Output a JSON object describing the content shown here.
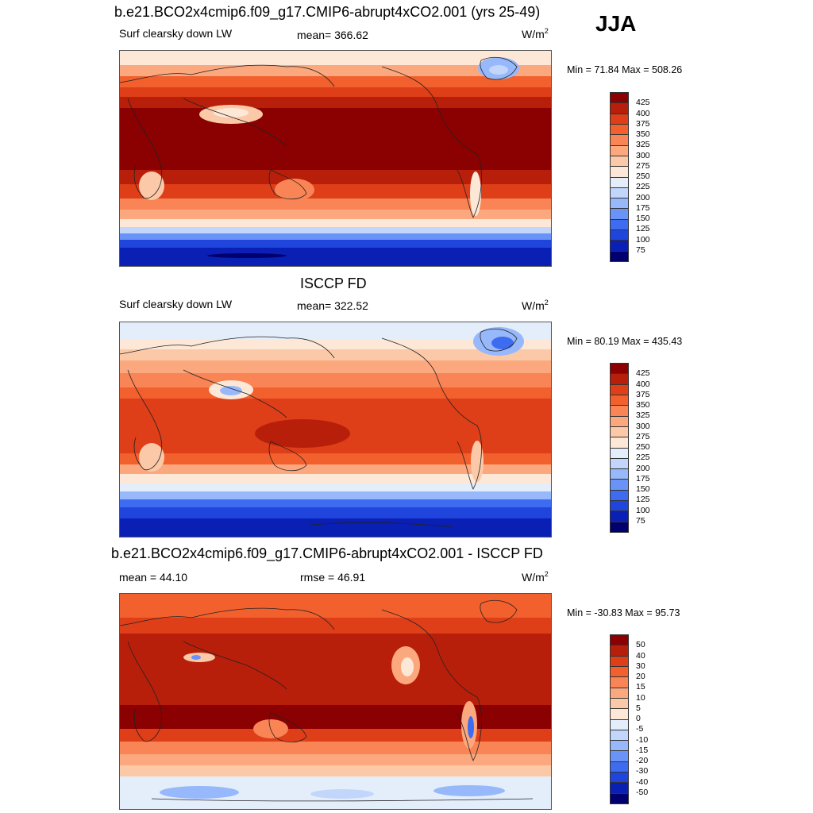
{
  "season": "JJA",
  "palettes": {
    "abs": [
      "#00006e",
      "#0a1fb4",
      "#1f45dc",
      "#3e6cf0",
      "#6a93f7",
      "#97b8fa",
      "#c2d6fb",
      "#e4eefb",
      "#fde8d7",
      "#fcc9a8",
      "#fca87e",
      "#f98455",
      "#f2602e",
      "#de3e18",
      "#b81f0a",
      "#8b0000"
    ],
    "diff": [
      "#00006e",
      "#0a1fb4",
      "#1f45dc",
      "#3e6cf0",
      "#6a93f7",
      "#97b8fa",
      "#c2d6fb",
      "#e4eefb",
      "#fde8d7",
      "#fcc9a8",
      "#fca87e",
      "#f98455",
      "#f2602e",
      "#de3e18",
      "#b81f0a",
      "#8b0000"
    ]
  },
  "panels": [
    {
      "title": "b.e21.BCO2x4cmip6.f09_g17.CMIP6-abrupt4xCO2.001 (yrs 25-49)",
      "variable": "Surf clearsky down LW",
      "stat": "mean= 366.62",
      "units": "W/m",
      "units_sup": "2",
      "minmax": "Min =  71.84 Max = 508.26",
      "levels": [
        "425",
        "400",
        "375",
        "350",
        "325",
        "300",
        "275",
        "250",
        "225",
        "200",
        "175",
        "150",
        "125",
        "100",
        "75"
      ],
      "palette": "abs"
    },
    {
      "title": "ISCCP FD",
      "variable": "Surf clearsky down LW",
      "stat": "mean= 322.52",
      "units": "W/m",
      "units_sup": "2",
      "minmax": "Min =  80.19 Max = 435.43",
      "levels": [
        "425",
        "400",
        "375",
        "350",
        "325",
        "300",
        "275",
        "250",
        "225",
        "200",
        "175",
        "150",
        "125",
        "100",
        "75"
      ],
      "palette": "abs"
    },
    {
      "title": "b.e21.BCO2x4cmip6.f09_g17.CMIP6-abrupt4xCO2.001 - ISCCP FD",
      "variable": "mean =  44.10",
      "stat": "rmse =  46.91",
      "units": "W/m",
      "units_sup": "2",
      "minmax": "Min = -30.83 Max =  95.73",
      "levels": [
        "50",
        "40",
        "30",
        "20",
        "15",
        "10",
        "5",
        "0",
        "-5",
        "-10",
        "-15",
        "-20",
        "-30",
        "-40",
        "-50"
      ],
      "palette": "diff"
    }
  ]
}
